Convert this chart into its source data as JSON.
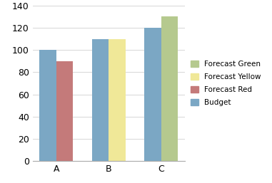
{
  "categories": [
    "A",
    "B",
    "C"
  ],
  "budget_values": [
    100,
    110,
    120
  ],
  "forecast_values": [
    90,
    110,
    130
  ],
  "forecast_colors": [
    "#c47a7a",
    "#f0e898",
    "#b5c98e"
  ],
  "forecast_labels": [
    "Forecast Red",
    "Forecast Yellow",
    "Forecast Green"
  ],
  "budget_color": "#7ba7c4",
  "budget_label": "Budget",
  "ylim": [
    0,
    140
  ],
  "yticks": [
    0,
    20,
    40,
    60,
    80,
    100,
    120,
    140
  ],
  "bar_width": 0.32,
  "background_color": "#ffffff",
  "figsize": [
    3.81,
    2.57
  ],
  "dpi": 100
}
